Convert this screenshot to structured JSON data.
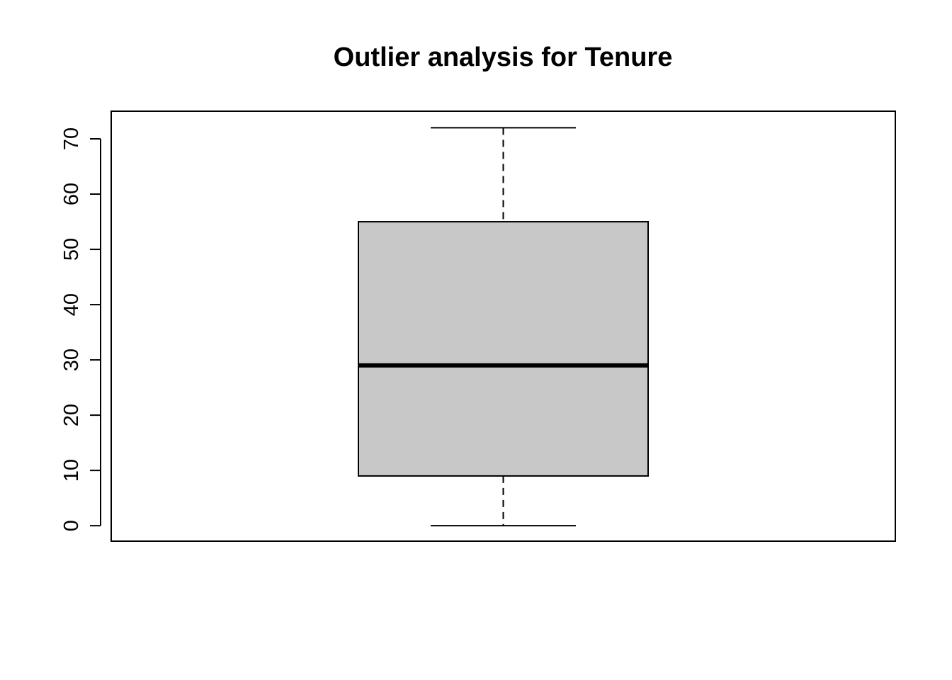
{
  "chart_data": {
    "type": "boxplot",
    "title": "Outlier analysis for Tenure",
    "xlabel": "",
    "ylabel": "",
    "ylim": [
      -2.8,
      75
    ],
    "yticks": [
      0,
      10,
      20,
      30,
      40,
      50,
      60,
      70
    ],
    "ytick_labels": [
      "0",
      "10",
      "20",
      "30",
      "40",
      "50",
      "60",
      "70"
    ],
    "boxes": [
      {
        "min": 0,
        "q1": 9,
        "median": 29,
        "q3": 55,
        "max": 72,
        "outliers": []
      }
    ],
    "grid": false,
    "legend": "none",
    "colors": {
      "box_fill": "#c8c8c8",
      "line": "#000000",
      "background": "#ffffff"
    }
  }
}
